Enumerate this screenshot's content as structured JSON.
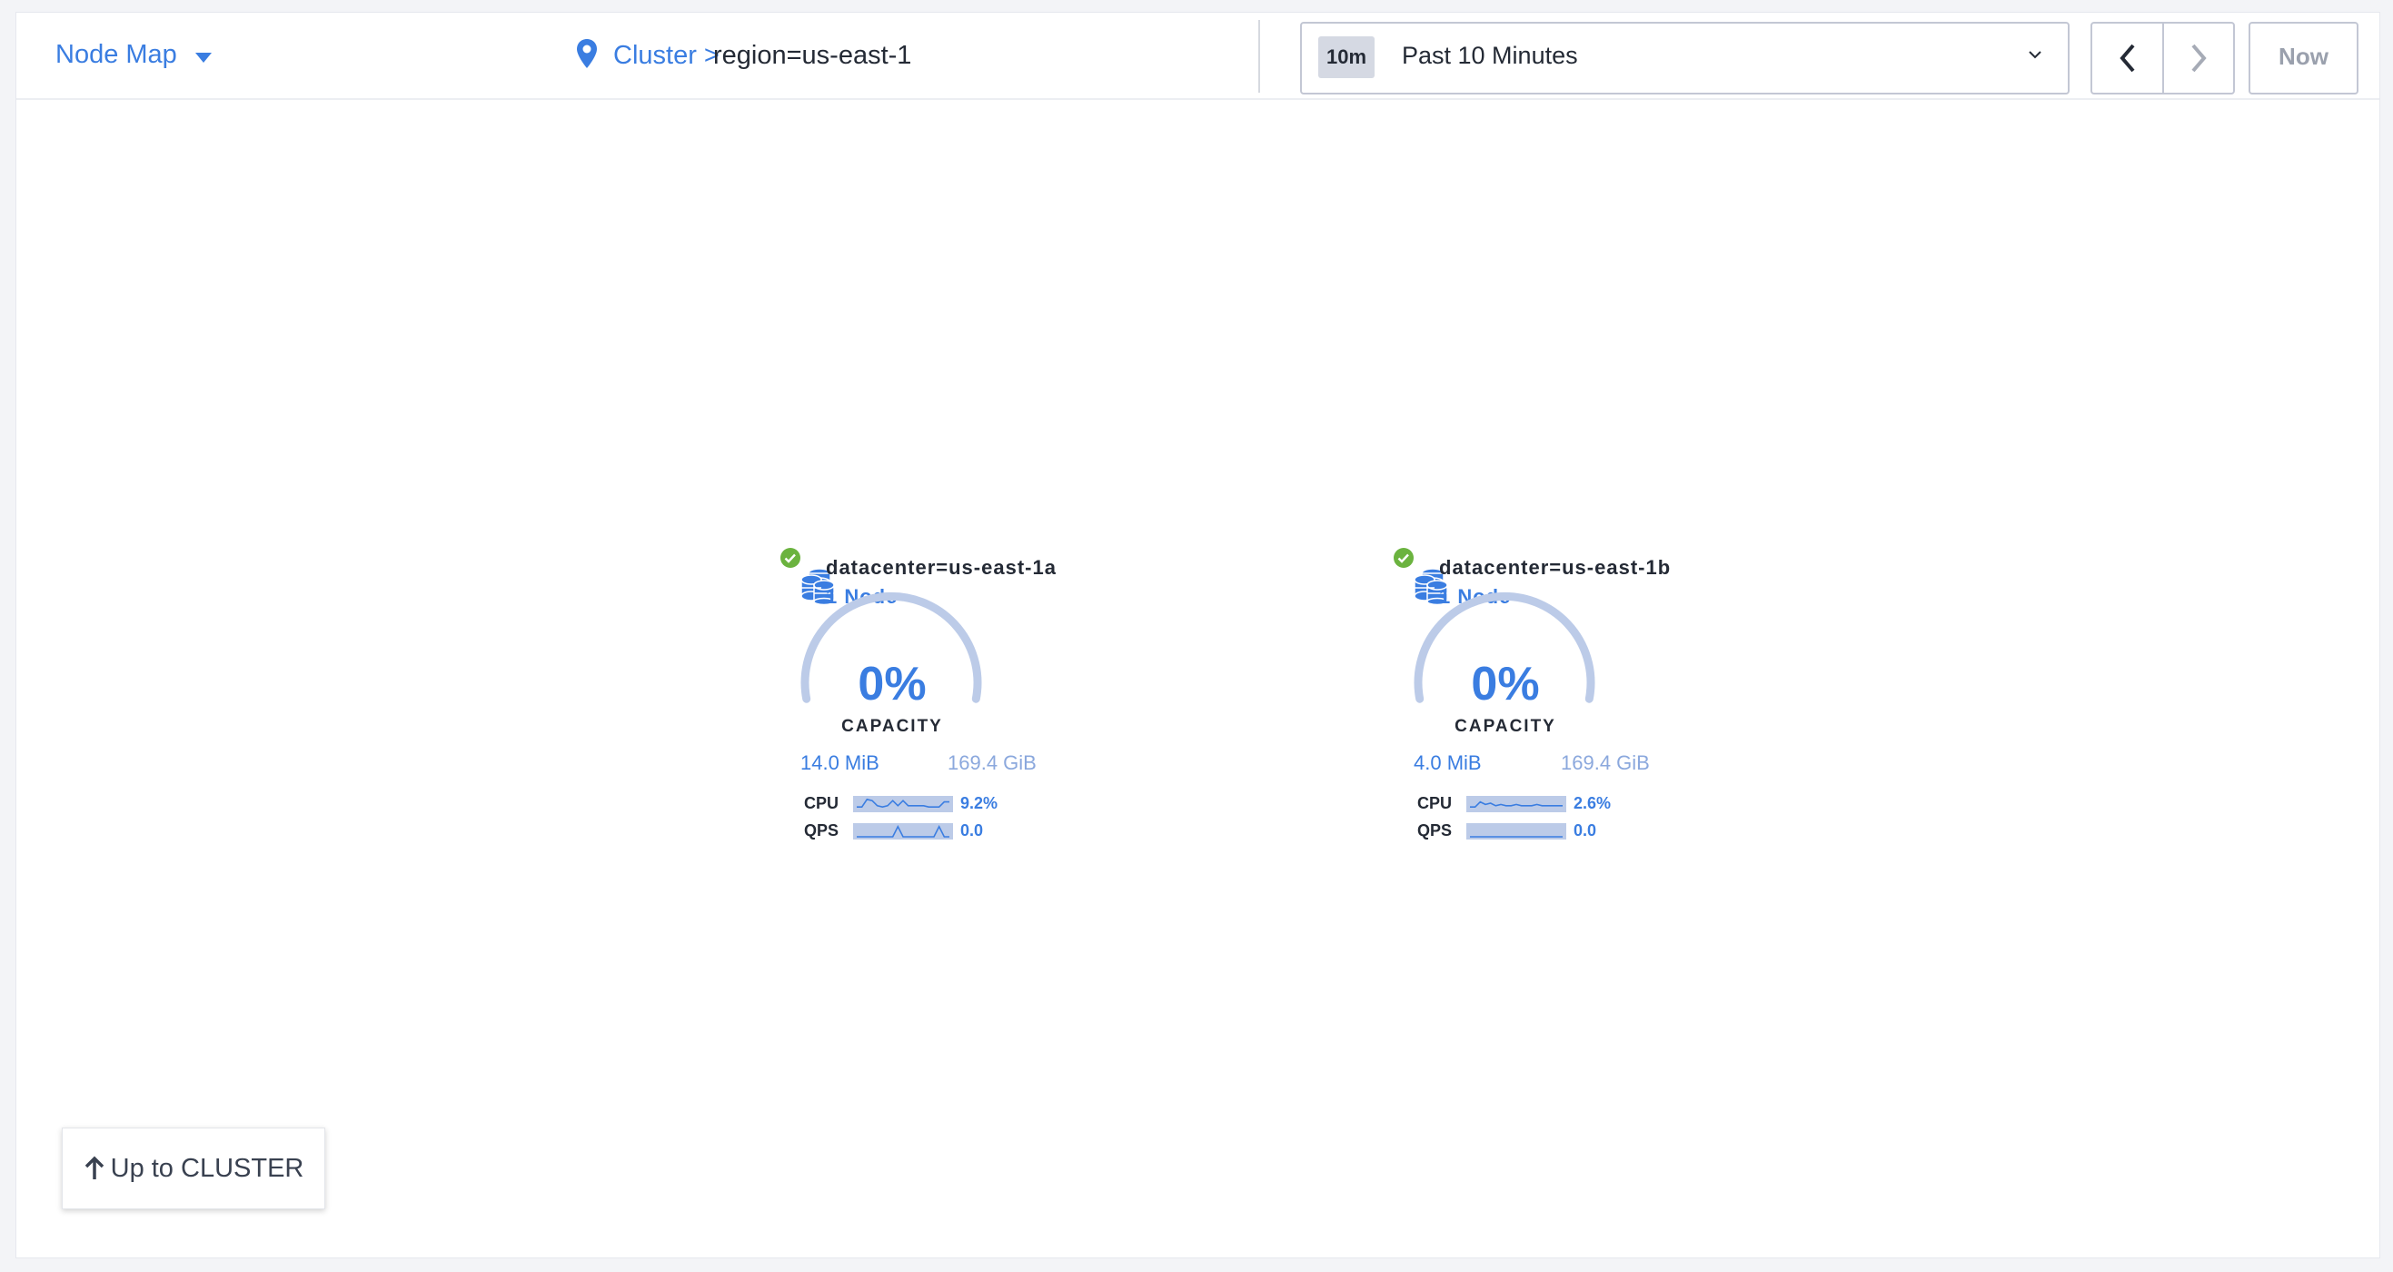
{
  "header": {
    "view_selector": "Node Map",
    "breadcrumb": {
      "link": "Cluster >",
      "current": "region=us-east-1"
    },
    "time_range": {
      "badge": "10m",
      "label": "Past 10 Minutes"
    },
    "now_label": "Now"
  },
  "colors": {
    "accent": "#3a7de1",
    "healthy": "#6bb33f",
    "gauge_track": "#bccbe8"
  },
  "localities": [
    {
      "name": "datacenter=us-east-1a",
      "nodes": "1 Node",
      "capacity_percent": "0%",
      "capacity_label": "CAPACITY",
      "used": "14.0 MiB",
      "total": "169.4 GiB",
      "status": "healthy",
      "metrics": [
        {
          "label": "CPU",
          "value": "9.2%",
          "trend": [
            2,
            2,
            8,
            7,
            3,
            2,
            3,
            7,
            3,
            7,
            3,
            3,
            3,
            3,
            2,
            2,
            2,
            6,
            6
          ]
        },
        {
          "label": "QPS",
          "value": "0.0",
          "trend": [
            0,
            0,
            0,
            0,
            0,
            0,
            0,
            0,
            8,
            0,
            0,
            0,
            0,
            0,
            0,
            0,
            8,
            0,
            0
          ]
        }
      ]
    },
    {
      "name": "datacenter=us-east-1b",
      "nodes": "1 Node",
      "capacity_percent": "0%",
      "capacity_label": "CAPACITY",
      "used": "4.0 MiB",
      "total": "169.4 GiB",
      "status": "healthy",
      "metrics": [
        {
          "label": "CPU",
          "value": "2.6%",
          "trend": [
            2,
            2,
            6,
            4,
            5,
            3,
            4,
            3,
            3,
            4,
            3,
            3,
            3,
            4,
            3,
            3,
            3,
            3,
            3
          ]
        },
        {
          "label": "QPS",
          "value": "0.0",
          "trend": [
            0,
            0,
            0,
            0,
            0,
            0,
            0,
            0,
            0,
            0,
            0,
            0,
            0,
            0,
            0,
            0,
            0,
            0,
            0
          ]
        }
      ]
    }
  ],
  "up_button": "Up to CLUSTER"
}
